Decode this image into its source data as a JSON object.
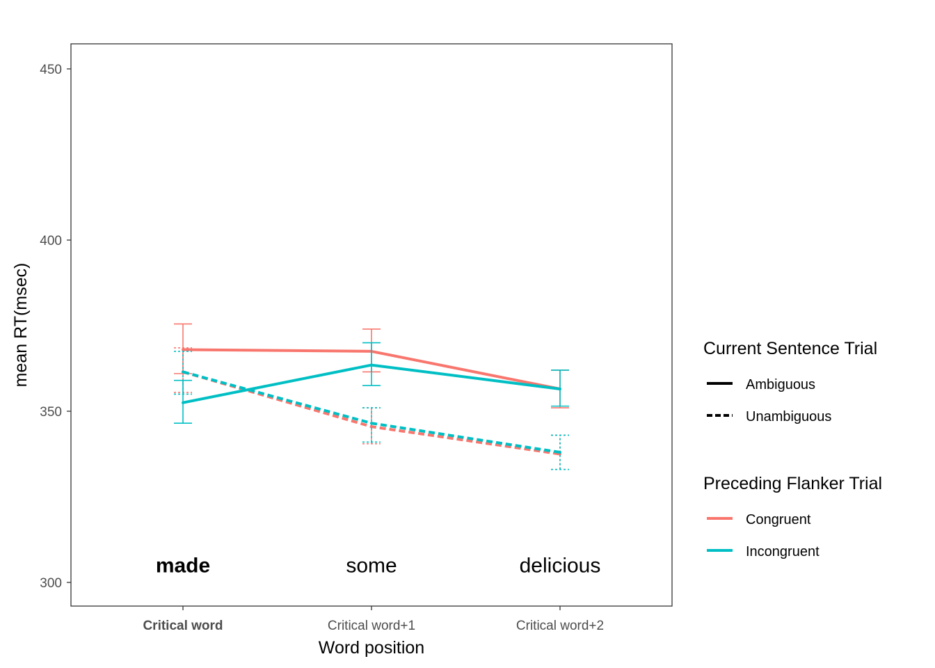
{
  "chart_data": {
    "type": "line",
    "title": "",
    "xlabel": "Word position",
    "ylabel": "mean RT(msec)",
    "categories": [
      "Critical word",
      "Critical word+1",
      "Critical word+2"
    ],
    "category_bold": [
      true,
      false,
      false
    ],
    "yticks": [
      300,
      350,
      400,
      450
    ],
    "ylim": [
      293,
      457
    ],
    "grid": false,
    "word_annotations": [
      {
        "category": 0,
        "text": "made",
        "y": 305,
        "bold": true
      },
      {
        "category": 1,
        "text": "some",
        "y": 305,
        "bold": false
      },
      {
        "category": 2,
        "text": "delicious",
        "y": 305,
        "bold": false
      }
    ],
    "series": [
      {
        "flanker": "Congruent",
        "sentence": "Ambiguous",
        "color": "#F8766D",
        "linetype": "solid",
        "values": [
          368,
          367.5,
          356.5
        ],
        "err_low": [
          361,
          361.5,
          351
        ],
        "err_high": [
          375.5,
          374,
          362
        ]
      },
      {
        "flanker": "Congruent",
        "sentence": "Unambiguous",
        "color": "#F8766D",
        "linetype": "dashed",
        "values": [
          361.5,
          345.5,
          337.5
        ],
        "err_low": [
          355.5,
          340.5,
          333
        ],
        "err_high": [
          368.5,
          351,
          343
        ]
      },
      {
        "flanker": "Incongruent",
        "sentence": "Ambiguous",
        "color": "#00BFC4",
        "linetype": "solid",
        "values": [
          352.5,
          363.5,
          356.5
        ],
        "err_low": [
          346.5,
          357.5,
          351.5
        ],
        "err_high": [
          359,
          370,
          362
        ]
      },
      {
        "flanker": "Incongruent",
        "sentence": "Unambiguous",
        "color": "#00BFC4",
        "linetype": "dashed",
        "values": [
          361.5,
          346.5,
          338
        ],
        "err_low": [
          355,
          341,
          333
        ],
        "err_high": [
          367.5,
          351,
          343
        ]
      }
    ],
    "legend": {
      "placement": "right",
      "groups": [
        {
          "title": "Current Sentence Trial",
          "items": [
            {
              "label": "Ambiguous",
              "linetype": "solid",
              "color": "#000000"
            },
            {
              "label": "Unambiguous",
              "linetype": "dashed",
              "color": "#000000"
            }
          ]
        },
        {
          "title": "Preceding Flanker Trial",
          "items": [
            {
              "label": "Congruent",
              "linetype": "solid",
              "color": "#F8766D"
            },
            {
              "label": "Incongruent",
              "linetype": "solid",
              "color": "#00BFC4"
            }
          ]
        }
      ]
    }
  }
}
